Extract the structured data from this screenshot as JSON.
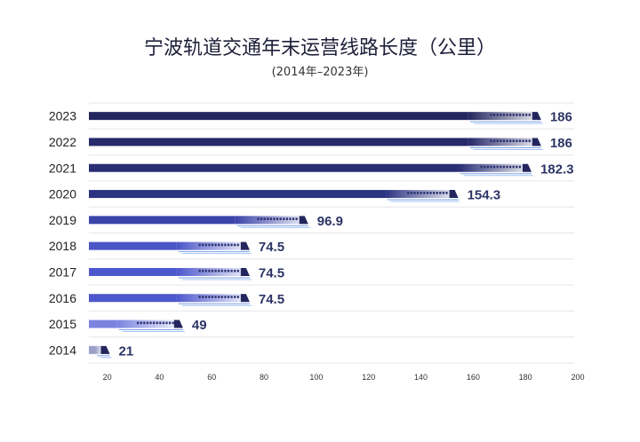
{
  "chart_data": {
    "type": "bar",
    "orientation": "horizontal",
    "title": "宁波轨道交通年末运营线路长度（公里）",
    "subtitle": "(2014年–2023年)",
    "categories": [
      "2023",
      "2022",
      "2021",
      "2020",
      "2019",
      "2018",
      "2017",
      "2016",
      "2015",
      "2014"
    ],
    "values": [
      186,
      186,
      182.3,
      154.3,
      96.9,
      74.5,
      74.5,
      74.5,
      49,
      21
    ],
    "value_labels": [
      "186",
      "186",
      "182.3",
      "154.3",
      "96.9",
      "74.5",
      "74.5",
      "74.5",
      "49",
      "21"
    ],
    "xlim": [
      13,
      200
    ],
    "x_ticks": [
      "20",
      "40",
      "60",
      "80",
      "100",
      "120",
      "140",
      "160",
      "180",
      "200"
    ],
    "colors": [
      "#23265e",
      "#26296a",
      "#282e74",
      "#2c3482",
      "#3a44a8",
      "#4a55c8",
      "#4c57cc",
      "#4c57cc",
      "#7a84e0",
      "#9aa0c8"
    ],
    "grid": false
  }
}
